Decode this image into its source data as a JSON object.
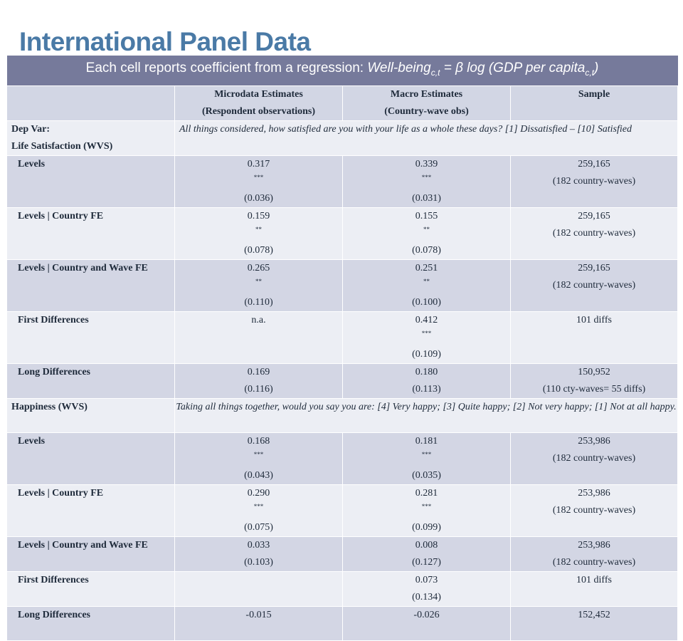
{
  "title": "International Panel Data",
  "banner": {
    "prefix": "Each cell reports coefficient from a regression: ",
    "wb": "Well-being",
    "wb_sub": "c,t",
    "mid": " = β log (GDP per capita",
    "gdp_sub": "c,t",
    "end": ")"
  },
  "headers": {
    "micro_line1": "Microdata Estimates",
    "micro_line2": "(Respondent observations)",
    "macro_line1": "Macro Estimates",
    "macro_line2": "(Country-wave obs)",
    "sample": "Sample"
  },
  "sections": {
    "ls": {
      "label1": "Dep Var:",
      "label2": "Life Satisfaction (WVS)",
      "question": "All things considered, how satisfied are you with your life as a whole these days? [1] Dissatisfied – [10] Satisfied"
    },
    "hap": {
      "label": "Happiness (WVS)",
      "question": "Taking all things together, would you say you are: [4] Very happy; [3] Quite happy; [2] Not very happy; [1] Not at all happy."
    }
  },
  "rows": [
    {
      "label": "Levels",
      "micro": "0.317",
      "micro_stars": "***",
      "micro_se": "(0.036)",
      "macro": "0.339",
      "macro_stars": "***",
      "macro_se": "(0.031)",
      "sample": "259,165",
      "sample2": "(182 country-waves)"
    },
    {
      "label": "Levels | Country FE",
      "micro": "0.159",
      "micro_stars": "**",
      "micro_se": "(0.078)",
      "macro": "0.155",
      "macro_stars": "**",
      "macro_se": "(0.078)",
      "sample": "259,165",
      "sample2": "(182 country-waves)"
    },
    {
      "label": "Levels | Country and Wave FE",
      "micro": "0.265",
      "micro_stars": "**",
      "micro_se": "(0.110)",
      "macro": "0.251",
      "macro_stars": "**",
      "macro_se": "(0.100)",
      "sample": "259,165",
      "sample2": "(182 country-waves)"
    },
    {
      "label": "First Differences",
      "micro": "n.a.",
      "micro_stars": "",
      "micro_se": "",
      "macro": "0.412",
      "macro_stars": "***",
      "macro_se": "(0.109)",
      "sample": "101 diffs",
      "sample2": ""
    },
    {
      "label": "Long Differences",
      "micro": "0.169",
      "micro_stars": "",
      "micro_se": "(0.116)",
      "macro": "0.180",
      "macro_stars": "",
      "macro_se": "(0.113)",
      "sample": "150,952",
      "sample2": "(110 cty-waves= 55 diffs)"
    },
    {
      "label": "Levels",
      "micro": "0.168",
      "micro_stars": "***",
      "micro_se": "(0.043)",
      "macro": "0.181",
      "macro_stars": "***",
      "macro_se": "(0.035)",
      "sample": "253,986",
      "sample2": "(182 country-waves)"
    },
    {
      "label": "Levels | Country FE",
      "micro": "0.290",
      "micro_stars": "***",
      "micro_se": "(0.075)",
      "macro": "0.281",
      "macro_stars": "***",
      "macro_se": "(0.099)",
      "sample": "253,986",
      "sample2": "(182 country-waves)"
    },
    {
      "label": "Levels | Country and Wave FE",
      "micro": "0.033",
      "micro_stars": "",
      "micro_se": "(0.103)",
      "macro": "0.008",
      "macro_stars": "",
      "macro_se": "(0.127)",
      "sample": "253,986",
      "sample2": "(182 country-waves)"
    },
    {
      "label": "First Differences",
      "micro": "",
      "micro_stars": "",
      "micro_se": "",
      "macro": "0.073",
      "macro_stars": "",
      "macro_se": "(0.134)",
      "sample": "101 diffs",
      "sample2": ""
    },
    {
      "label": "Long Differences",
      "micro": "-0.015",
      "micro_stars": "",
      "micro_se": "",
      "macro": "-0.026",
      "macro_stars": "",
      "macro_se": "",
      "sample": "152,452",
      "sample2": ""
    }
  ]
}
